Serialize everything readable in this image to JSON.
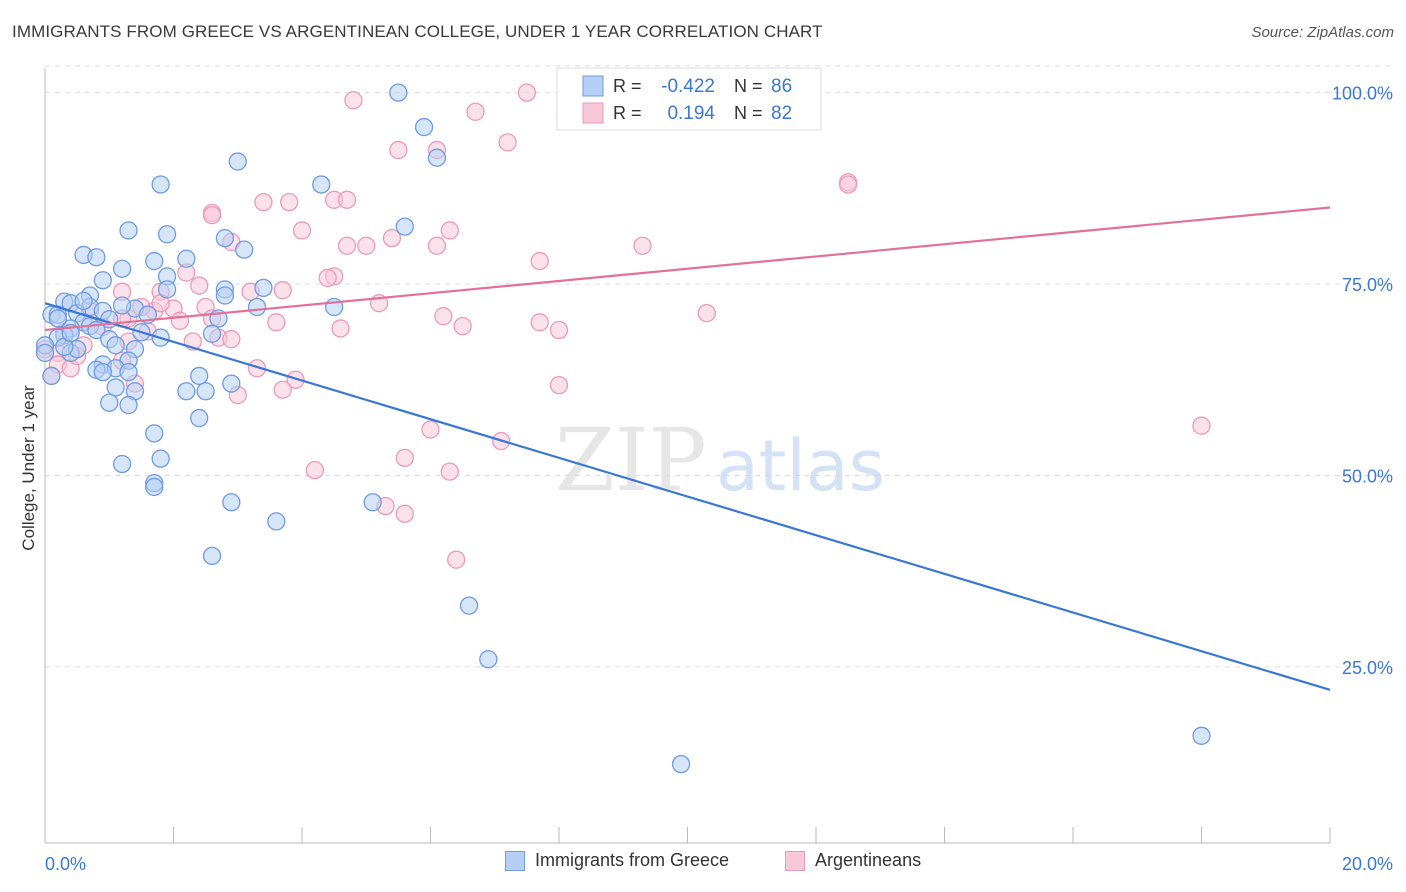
{
  "title": "IMMIGRANTS FROM GREECE VS ARGENTINEAN COLLEGE, UNDER 1 YEAR CORRELATION CHART",
  "source": "Source: ZipAtlas.com",
  "watermark": {
    "zip": "ZIP",
    "atlas": "atlas"
  },
  "legend_top": [
    {
      "r_label": "R =",
      "r_value": "-0.422",
      "n_label": "N =",
      "n_value": "86"
    },
    {
      "r_label": "R =",
      "r_value": "0.194",
      "n_label": "N =",
      "n_value": "82"
    }
  ],
  "legend_bottom": [
    "Immigrants from Greece",
    "Argentineans"
  ],
  "colors": {
    "blue": "#3a78d4",
    "blue_fill": "#b6cff4",
    "blue_stroke": "#6f9be0",
    "pink": "#e0719a",
    "pink_fill": "#f7c9d8",
    "pink_stroke": "#eb9ab8",
    "axis_text": "#3a78d4",
    "grid": "#dddddd"
  },
  "chart_data": {
    "type": "scatter",
    "title": "IMMIGRANTS FROM GREECE VS ARGENTINEAN COLLEGE, UNDER 1 YEAR CORRELATION CHART",
    "xlabel": "",
    "ylabel": "College, Under 1 year",
    "xlim": [
      0,
      20
    ],
    "ylim": [
      2,
      104
    ],
    "x_tick_labels": [
      "0.0%",
      "20.0%"
    ],
    "y_ticks": [
      25,
      50,
      75,
      100
    ],
    "y_tick_labels": [
      "25.0%",
      "50.0%",
      "75.0%",
      "100.0%"
    ],
    "grid": true,
    "legend_position": "top-center",
    "series": [
      {
        "name": "Immigrants from Greece",
        "color": "#3a78d4",
        "trend": {
          "x": [
            0,
            20
          ],
          "y": [
            72.5,
            22.0
          ]
        },
        "points": [
          [
            5.5,
            100.0
          ],
          [
            5.9,
            95.5
          ],
          [
            6.1,
            91.5
          ],
          [
            3.0,
            91.0
          ],
          [
            1.8,
            88.0
          ],
          [
            4.3,
            88.0
          ],
          [
            5.6,
            82.5
          ],
          [
            1.3,
            82.0
          ],
          [
            1.9,
            81.5
          ],
          [
            2.8,
            81.0
          ],
          [
            3.1,
            79.5
          ],
          [
            0.6,
            78.8
          ],
          [
            0.8,
            78.5
          ],
          [
            1.7,
            78.0
          ],
          [
            2.2,
            78.3
          ],
          [
            1.2,
            77.0
          ],
          [
            1.9,
            76.0
          ],
          [
            0.9,
            75.5
          ],
          [
            3.4,
            74.5
          ],
          [
            2.8,
            74.3
          ],
          [
            1.9,
            74.3
          ],
          [
            0.7,
            73.5
          ],
          [
            2.8,
            73.5
          ],
          [
            0.3,
            72.7
          ],
          [
            0.4,
            72.5
          ],
          [
            3.3,
            72.0
          ],
          [
            4.5,
            72.0
          ],
          [
            0.7,
            72.0
          ],
          [
            1.4,
            71.8
          ],
          [
            0.9,
            71.5
          ],
          [
            0.1,
            71.0
          ],
          [
            0.2,
            71.0
          ],
          [
            0.5,
            71.2
          ],
          [
            1.6,
            71.0
          ],
          [
            2.7,
            70.5
          ],
          [
            1.0,
            70.4
          ],
          [
            0.6,
            70.0
          ],
          [
            0.7,
            69.5
          ],
          [
            0.4,
            69.2
          ],
          [
            0.8,
            69.0
          ],
          [
            1.5,
            68.7
          ],
          [
            0.3,
            68.3
          ],
          [
            1.8,
            68.0
          ],
          [
            2.6,
            68.5
          ],
          [
            0.2,
            68.0
          ],
          [
            1.0,
            67.8
          ],
          [
            1.1,
            67.0
          ],
          [
            0.0,
            67.0
          ],
          [
            1.4,
            66.5
          ],
          [
            0.4,
            66.0
          ],
          [
            1.3,
            65.0
          ],
          [
            0.9,
            64.5
          ],
          [
            1.1,
            64.0
          ],
          [
            0.8,
            63.8
          ],
          [
            0.9,
            63.5
          ],
          [
            1.3,
            63.5
          ],
          [
            0.1,
            63.0
          ],
          [
            2.4,
            63.0
          ],
          [
            2.9,
            62.0
          ],
          [
            1.1,
            61.5
          ],
          [
            1.4,
            61.0
          ],
          [
            2.2,
            61.0
          ],
          [
            2.5,
            61.0
          ],
          [
            1.0,
            59.5
          ],
          [
            1.3,
            59.2
          ],
          [
            2.4,
            57.5
          ],
          [
            1.7,
            55.5
          ],
          [
            1.8,
            52.2
          ],
          [
            1.2,
            51.5
          ],
          [
            1.7,
            49.0
          ],
          [
            1.7,
            48.5
          ],
          [
            2.9,
            46.5
          ],
          [
            5.1,
            46.5
          ],
          [
            3.6,
            44.0
          ],
          [
            2.6,
            39.5
          ],
          [
            6.6,
            33.0
          ],
          [
            6.9,
            26.0
          ],
          [
            18.0,
            16.0
          ],
          [
            9.9,
            12.3
          ],
          [
            0.0,
            66.0
          ],
          [
            0.5,
            66.5
          ],
          [
            0.2,
            70.5
          ],
          [
            0.3,
            66.8
          ],
          [
            0.6,
            72.8
          ],
          [
            0.4,
            68.6
          ],
          [
            1.2,
            72.2
          ]
        ]
      },
      {
        "name": "Argentineans",
        "color": "#e0719a",
        "trend": {
          "x": [
            0,
            20
          ],
          "y": [
            69.0,
            85.0
          ]
        },
        "points": [
          [
            7.5,
            100.0
          ],
          [
            8.8,
            100.0
          ],
          [
            4.8,
            99.0
          ],
          [
            8.2,
            98.5
          ],
          [
            6.7,
            97.5
          ],
          [
            8.1,
            97.0
          ],
          [
            7.2,
            93.5
          ],
          [
            6.1,
            92.5
          ],
          [
            5.5,
            92.5
          ],
          [
            12.5,
            88.3
          ],
          [
            12.5,
            88.0
          ],
          [
            4.5,
            86.0
          ],
          [
            4.7,
            86.0
          ],
          [
            3.8,
            85.7
          ],
          [
            3.4,
            85.7
          ],
          [
            2.6,
            84.3
          ],
          [
            4.0,
            82.0
          ],
          [
            6.3,
            82.0
          ],
          [
            5.4,
            81.0
          ],
          [
            2.9,
            80.5
          ],
          [
            4.7,
            80.0
          ],
          [
            5.0,
            80.0
          ],
          [
            6.1,
            80.0
          ],
          [
            9.3,
            80.0
          ],
          [
            7.7,
            78.0
          ],
          [
            2.2,
            76.5
          ],
          [
            4.5,
            76.0
          ],
          [
            4.4,
            75.8
          ],
          [
            2.4,
            74.8
          ],
          [
            1.2,
            74.0
          ],
          [
            1.8,
            74.0
          ],
          [
            3.2,
            74.0
          ],
          [
            5.2,
            72.5
          ],
          [
            2.5,
            72.0
          ],
          [
            2.0,
            71.8
          ],
          [
            1.7,
            71.5
          ],
          [
            10.3,
            71.2
          ],
          [
            6.2,
            70.8
          ],
          [
            1.3,
            70.5
          ],
          [
            1.2,
            70.5
          ],
          [
            2.1,
            70.2
          ],
          [
            3.6,
            70.0
          ],
          [
            7.7,
            70.0
          ],
          [
            6.5,
            69.5
          ],
          [
            4.6,
            69.2
          ],
          [
            8.0,
            69.0
          ],
          [
            0.3,
            68.7
          ],
          [
            2.7,
            68.0
          ],
          [
            2.9,
            67.8
          ],
          [
            2.3,
            67.5
          ],
          [
            1.3,
            67.5
          ],
          [
            0.6,
            67.0
          ],
          [
            0.0,
            66.5
          ],
          [
            0.2,
            66.0
          ],
          [
            1.2,
            65.0
          ],
          [
            0.2,
            64.5
          ],
          [
            0.4,
            64.0
          ],
          [
            3.3,
            64.0
          ],
          [
            0.1,
            63.0
          ],
          [
            3.9,
            62.5
          ],
          [
            1.4,
            62.0
          ],
          [
            8.0,
            61.8
          ],
          [
            3.7,
            61.2
          ],
          [
            3.0,
            60.5
          ],
          [
            6.0,
            56.0
          ],
          [
            18.0,
            56.5
          ],
          [
            7.1,
            54.5
          ],
          [
            5.6,
            52.3
          ],
          [
            4.2,
            50.7
          ],
          [
            6.3,
            50.5
          ],
          [
            5.3,
            46.0
          ],
          [
            5.6,
            45.0
          ],
          [
            6.4,
            39.0
          ],
          [
            1.6,
            68.8
          ],
          [
            0.9,
            69.4
          ],
          [
            1.5,
            72.0
          ],
          [
            2.6,
            70.5
          ],
          [
            0.7,
            71.5
          ],
          [
            3.7,
            74.2
          ],
          [
            2.6,
            84.0
          ],
          [
            1.8,
            72.5
          ],
          [
            0.5,
            65.6
          ]
        ]
      }
    ]
  }
}
